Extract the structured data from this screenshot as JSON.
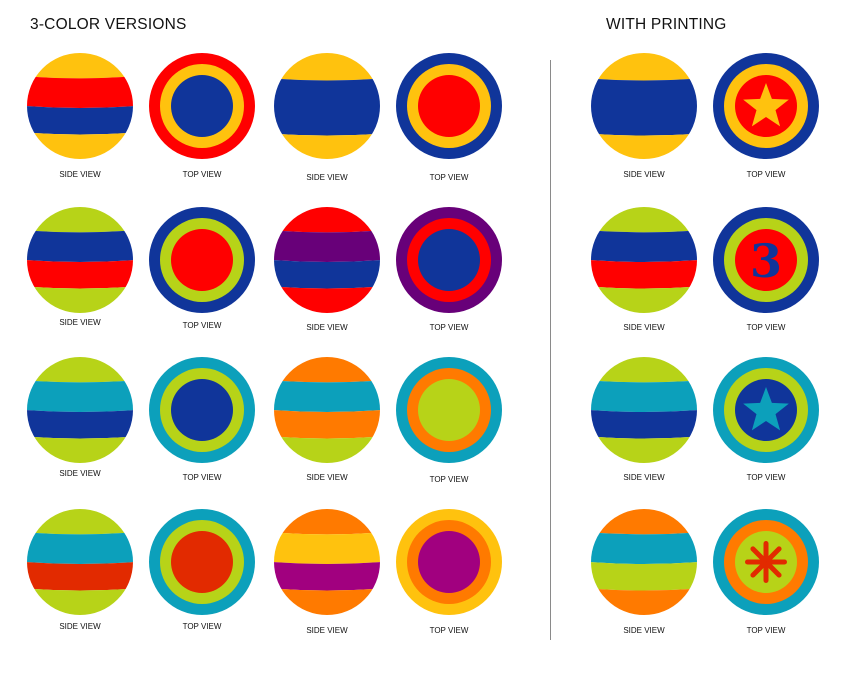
{
  "headings": {
    "left": "3-COLOR VERSIONS",
    "right": "WITH PRINTING"
  },
  "colors": {
    "yellow": "#FFC20E",
    "red": "#FF0000",
    "blue": "#10359A",
    "lime": "#B7D318",
    "purple": "#680079",
    "teal": "#0CA0BB",
    "orange": "#FF7A00",
    "redorange": "#E22A00",
    "magenta": "#A1007F"
  },
  "balls": [
    {
      "view": "side",
      "label": "SIDE VIEW",
      "colors": [
        "yellow",
        "red",
        "blue",
        "yellow"
      ]
    },
    {
      "view": "top",
      "label": "TOP VIEW",
      "colors": [
        "red",
        "yellow",
        "blue"
      ]
    },
    {
      "view": "side",
      "label": "SIDE VIEW",
      "colors": [
        "yellow",
        "blue",
        "yellow"
      ]
    },
    {
      "view": "top",
      "label": "TOP VIEW",
      "colors": [
        "blue",
        "yellow",
        "red"
      ]
    },
    {
      "view": "side",
      "label": "SIDE VIEW",
      "colors": [
        "yellow",
        "blue",
        "yellow"
      ]
    },
    {
      "view": "top",
      "label": "TOP VIEW",
      "colors": [
        "blue",
        "yellow",
        "red"
      ],
      "print": "star",
      "print_color": "yellow"
    },
    {
      "view": "side",
      "label": "SIDE VIEW",
      "colors": [
        "lime",
        "blue",
        "red",
        "lime"
      ]
    },
    {
      "view": "top",
      "label": "TOP VIEW",
      "colors": [
        "blue",
        "lime",
        "red"
      ]
    },
    {
      "view": "side",
      "label": "SIDE VIEW",
      "colors": [
        "red",
        "purple",
        "blue",
        "red"
      ]
    },
    {
      "view": "top",
      "label": "TOP VIEW",
      "colors": [
        "purple",
        "red",
        "blue"
      ]
    },
    {
      "view": "side",
      "label": "SIDE VIEW",
      "colors": [
        "lime",
        "blue",
        "red",
        "lime"
      ]
    },
    {
      "view": "top",
      "label": "TOP VIEW",
      "colors": [
        "blue",
        "lime",
        "red"
      ],
      "print": "3",
      "print_color": "blue"
    },
    {
      "view": "side",
      "label": "SIDE VIEW",
      "colors": [
        "lime",
        "teal",
        "blue",
        "lime"
      ]
    },
    {
      "view": "top",
      "label": "TOP VIEW",
      "colors": [
        "teal",
        "lime",
        "blue"
      ]
    },
    {
      "view": "side",
      "label": "SIDE VIEW",
      "colors": [
        "orange",
        "teal",
        "orange",
        "lime"
      ]
    },
    {
      "view": "top",
      "label": "TOP VIEW",
      "colors": [
        "teal",
        "orange",
        "lime"
      ]
    },
    {
      "view": "side",
      "label": "SIDE VIEW",
      "colors": [
        "lime",
        "teal",
        "blue",
        "lime"
      ]
    },
    {
      "view": "top",
      "label": "TOP VIEW",
      "colors": [
        "teal",
        "lime",
        "blue"
      ],
      "print": "star",
      "print_color": "teal"
    },
    {
      "view": "side",
      "label": "SIDE VIEW",
      "colors": [
        "lime",
        "teal",
        "redorange",
        "lime"
      ]
    },
    {
      "view": "top",
      "label": "TOP VIEW",
      "colors": [
        "teal",
        "lime",
        "redorange"
      ]
    },
    {
      "view": "side",
      "label": "SIDE VIEW",
      "colors": [
        "orange",
        "yellow",
        "magenta",
        "orange"
      ]
    },
    {
      "view": "top",
      "label": "TOP VIEW",
      "colors": [
        "yellow",
        "orange",
        "magenta"
      ]
    },
    {
      "view": "side",
      "label": "SIDE VIEW",
      "colors": [
        "orange",
        "teal",
        "lime",
        "orange"
      ]
    },
    {
      "view": "top",
      "label": "TOP VIEW",
      "colors": [
        "teal",
        "orange",
        "lime"
      ],
      "print": "asterisk",
      "print_color": "redorange"
    }
  ]
}
